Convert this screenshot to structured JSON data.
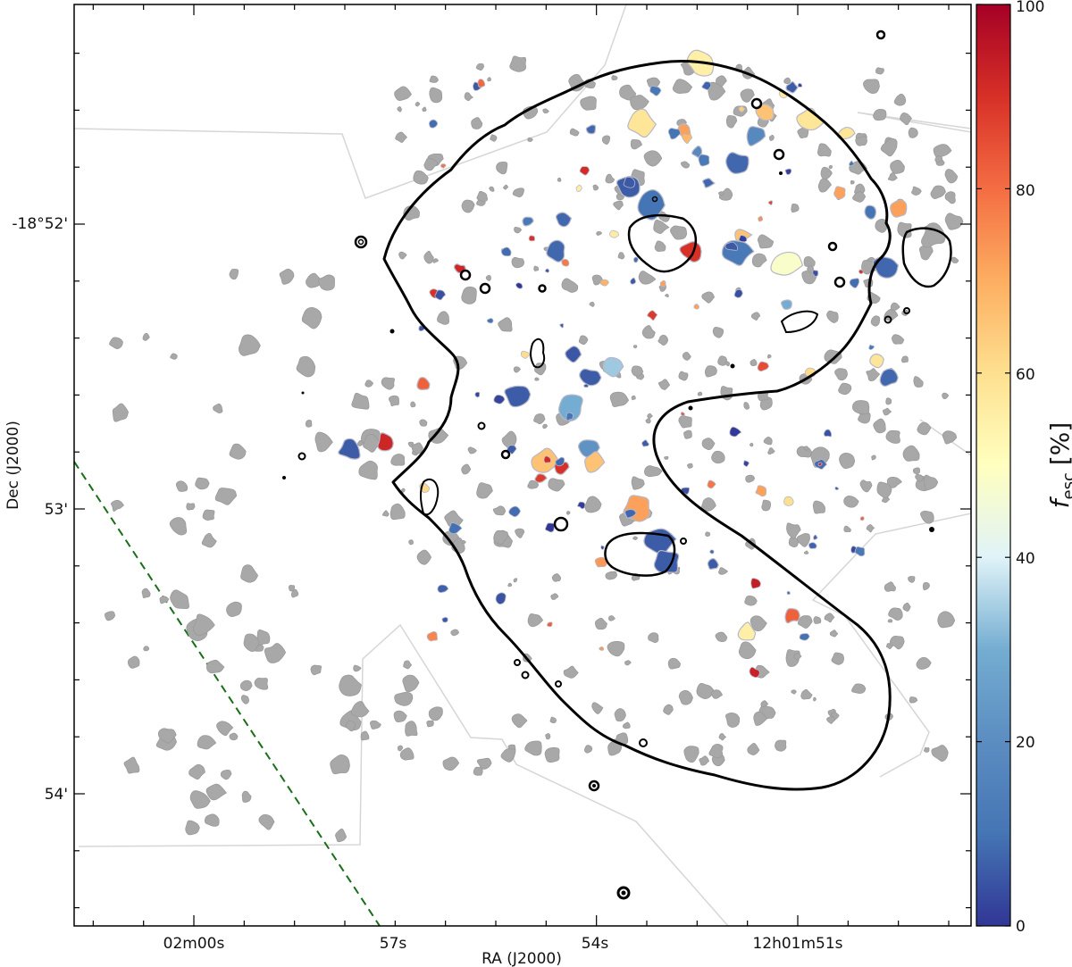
{
  "chart_data": {
    "type": "scatter",
    "title": "",
    "xlabel": "RA (J2000)",
    "ylabel": "Dec (J2000)",
    "x_tick_labels": [
      "02m00s",
      "57s",
      "54s",
      "12h01m51s"
    ],
    "y_tick_labels": [
      "-18°52'",
      "53'",
      "54'"
    ],
    "colorbar": {
      "label_main": "f",
      "label_sub": "esc",
      "label_unit": "[%]",
      "range": [
        0,
        100
      ],
      "tick_labels": [
        "0",
        "20",
        "40",
        "60",
        "80",
        "100"
      ],
      "colormap": "RdYlBu_r"
    },
    "colors": {
      "masked_region": "#a8a8a8",
      "footprint": "#d0d0d0",
      "contour": "#000000",
      "dashed_line": "#1a6e1a"
    },
    "series_colored": [
      {
        "x": 0.505,
        "y": 0.235,
        "f": 12
      },
      {
        "x": 0.545,
        "y": 0.232,
        "f": 8
      },
      {
        "x": 0.538,
        "y": 0.268,
        "f": 8
      },
      {
        "x": 0.618,
        "y": 0.196,
        "f": 6
      },
      {
        "x": 0.643,
        "y": 0.218,
        "f": 10
      },
      {
        "x": 0.707,
        "y": 0.194,
        "f": 8
      },
      {
        "x": 0.745,
        "y": 0.25,
        "f": 66
      },
      {
        "x": 0.77,
        "y": 0.118,
        "f": 66
      },
      {
        "x": 0.82,
        "y": 0.128,
        "f": 58
      },
      {
        "x": 0.7,
        "y": 0.066,
        "f": 55
      },
      {
        "x": 0.695,
        "y": 0.16,
        "f": 18
      },
      {
        "x": 0.555,
        "y": 0.38,
        "f": 5
      },
      {
        "x": 0.574,
        "y": 0.405,
        "f": 6
      },
      {
        "x": 0.525,
        "y": 0.497,
        "f": 66
      },
      {
        "x": 0.628,
        "y": 0.546,
        "f": 72
      },
      {
        "x": 0.43,
        "y": 0.287,
        "f": 92
      },
      {
        "x": 0.389,
        "y": 0.412,
        "f": 82
      },
      {
        "x": 0.348,
        "y": 0.476,
        "f": 92
      },
      {
        "x": 0.308,
        "y": 0.483,
        "f": 6
      },
      {
        "x": 0.74,
        "y": 0.268,
        "f": 12
      },
      {
        "x": 0.8,
        "y": 0.09,
        "f": 6
      },
      {
        "x": 0.888,
        "y": 0.225,
        "f": 10
      },
      {
        "x": 0.92,
        "y": 0.222,
        "f": 72
      },
      {
        "x": 0.905,
        "y": 0.283,
        "f": 8
      },
      {
        "x": 0.794,
        "y": 0.283,
        "f": 48
      },
      {
        "x": 0.795,
        "y": 0.325,
        "f": 30
      },
      {
        "x": 0.86,
        "y": 0.14,
        "f": 58
      },
      {
        "x": 0.76,
        "y": 0.143,
        "f": 18
      },
      {
        "x": 0.74,
        "y": 0.173,
        "f": 8
      },
      {
        "x": 0.653,
        "y": 0.58,
        "f": 6
      },
      {
        "x": 0.62,
        "y": 0.552,
        "f": 8
      },
      {
        "x": 0.8,
        "y": 0.663,
        "f": 82
      },
      {
        "x": 0.749,
        "y": 0.682,
        "f": 55
      },
      {
        "x": 0.6,
        "y": 0.393,
        "f": 34
      },
      {
        "x": 0.553,
        "y": 0.437,
        "f": 30
      },
      {
        "x": 0.52,
        "y": 0.514,
        "f": 88
      },
      {
        "x": 0.895,
        "y": 0.385,
        "f": 58
      },
      {
        "x": 0.91,
        "y": 0.405,
        "f": 8
      },
      {
        "x": 0.688,
        "y": 0.268,
        "f": 90
      },
      {
        "x": 0.633,
        "y": 0.13,
        "f": 58
      },
      {
        "x": 0.576,
        "y": 0.136,
        "f": 8
      },
      {
        "x": 0.68,
        "y": 0.137,
        "f": 72
      },
      {
        "x": 0.573,
        "y": 0.481,
        "f": 22
      },
      {
        "x": 0.494,
        "y": 0.423,
        "f": 6
      },
      {
        "x": 0.66,
        "y": 0.605,
        "f": 6
      },
      {
        "x": 0.712,
        "y": 0.608,
        "f": 6
      },
      {
        "x": 0.542,
        "y": 0.502,
        "f": 90
      },
      {
        "x": 0.58,
        "y": 0.497,
        "f": 66
      }
    ]
  }
}
